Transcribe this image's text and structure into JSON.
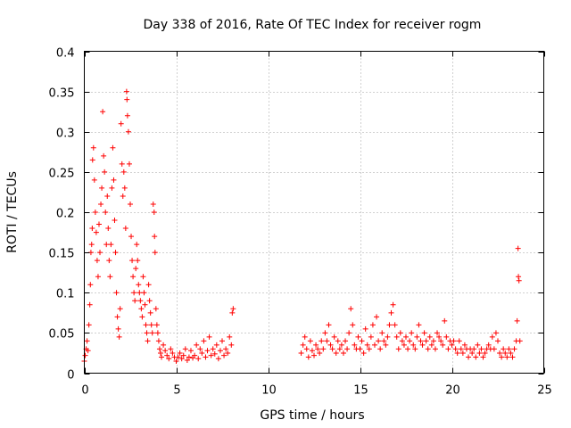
{
  "chart_data": {
    "type": "scatter",
    "title": "Day 338 of 2016, Rate Of TEC Index for receiver rogm",
    "xlabel": "GPS time / hours",
    "ylabel": "ROTI / TECUs",
    "xlim": [
      0,
      25
    ],
    "ylim": [
      0,
      0.4
    ],
    "x_ticks": [
      0,
      5,
      10,
      15,
      20,
      25
    ],
    "x_tick_labels": [
      "0",
      "5",
      "10",
      "15",
      "20",
      "25"
    ],
    "y_ticks": [
      0,
      0.05,
      0.1,
      0.15,
      0.2,
      0.25,
      0.3,
      0.35,
      0.4
    ],
    "y_tick_labels": [
      "0",
      "0.05",
      "0.1",
      "0.15",
      "0.2",
      "0.25",
      "0.3",
      "0.35",
      "0.4"
    ],
    "grid": true,
    "marker": "+",
    "marker_color": "#ff0000",
    "series": [
      {
        "name": "ROTI",
        "points": [
          [
            0.0,
            0.015
          ],
          [
            0.05,
            0.022
          ],
          [
            0.1,
            0.03
          ],
          [
            0.15,
            0.04
          ],
          [
            0.2,
            0.028
          ],
          [
            0.25,
            0.06
          ],
          [
            0.3,
            0.085
          ],
          [
            0.33,
            0.11
          ],
          [
            0.36,
            0.15
          ],
          [
            0.4,
            0.16
          ],
          [
            0.43,
            0.18
          ],
          [
            0.45,
            0.265
          ],
          [
            0.5,
            0.28
          ],
          [
            0.55,
            0.24
          ],
          [
            0.6,
            0.2
          ],
          [
            0.65,
            0.175
          ],
          [
            0.7,
            0.14
          ],
          [
            0.75,
            0.12
          ],
          [
            0.8,
            0.185
          ],
          [
            0.85,
            0.15
          ],
          [
            0.9,
            0.21
          ],
          [
            0.95,
            0.23
          ],
          [
            1.0,
            0.325
          ],
          [
            1.05,
            0.27
          ],
          [
            1.1,
            0.25
          ],
          [
            1.15,
            0.2
          ],
          [
            1.2,
            0.16
          ],
          [
            1.25,
            0.22
          ],
          [
            1.3,
            0.18
          ],
          [
            1.35,
            0.14
          ],
          [
            1.4,
            0.12
          ],
          [
            1.45,
            0.16
          ],
          [
            1.5,
            0.23
          ],
          [
            1.55,
            0.28
          ],
          [
            1.6,
            0.24
          ],
          [
            1.65,
            0.19
          ],
          [
            1.7,
            0.15
          ],
          [
            1.75,
            0.1
          ],
          [
            1.8,
            0.07
          ],
          [
            1.85,
            0.055
          ],
          [
            1.9,
            0.045
          ],
          [
            1.95,
            0.08
          ],
          [
            2.0,
            0.31
          ],
          [
            2.05,
            0.26
          ],
          [
            2.1,
            0.22
          ],
          [
            2.15,
            0.25
          ],
          [
            2.2,
            0.23
          ],
          [
            2.25,
            0.18
          ],
          [
            2.3,
            0.35
          ],
          [
            2.32,
            0.34
          ],
          [
            2.35,
            0.32
          ],
          [
            2.4,
            0.3
          ],
          [
            2.45,
            0.26
          ],
          [
            2.5,
            0.21
          ],
          [
            2.55,
            0.17
          ],
          [
            2.6,
            0.14
          ],
          [
            2.65,
            0.12
          ],
          [
            2.7,
            0.1
          ],
          [
            2.75,
            0.09
          ],
          [
            2.8,
            0.13
          ],
          [
            2.85,
            0.16
          ],
          [
            2.9,
            0.14
          ],
          [
            2.95,
            0.11
          ],
          [
            3.0,
            0.1
          ],
          [
            3.05,
            0.09
          ],
          [
            3.1,
            0.08
          ],
          [
            3.15,
            0.07
          ],
          [
            3.2,
            0.12
          ],
          [
            3.25,
            0.1
          ],
          [
            3.3,
            0.085
          ],
          [
            3.35,
            0.06
          ],
          [
            3.4,
            0.05
          ],
          [
            3.45,
            0.04
          ],
          [
            3.5,
            0.11
          ],
          [
            3.55,
            0.09
          ],
          [
            3.6,
            0.075
          ],
          [
            3.65,
            0.06
          ],
          [
            3.7,
            0.05
          ],
          [
            3.75,
            0.21
          ],
          [
            3.8,
            0.2
          ],
          [
            3.82,
            0.17
          ],
          [
            3.85,
            0.15
          ],
          [
            3.9,
            0.08
          ],
          [
            3.95,
            0.06
          ],
          [
            4.0,
            0.05
          ],
          [
            4.05,
            0.04
          ],
          [
            4.1,
            0.03
          ],
          [
            4.15,
            0.025
          ],
          [
            4.2,
            0.02
          ],
          [
            4.3,
            0.035
          ],
          [
            4.4,
            0.028
          ],
          [
            4.5,
            0.022
          ],
          [
            4.6,
            0.018
          ],
          [
            4.7,
            0.03
          ],
          [
            4.8,
            0.025
          ],
          [
            4.9,
            0.02
          ],
          [
            5.0,
            0.015
          ],
          [
            5.1,
            0.02
          ],
          [
            5.2,
            0.025
          ],
          [
            5.3,
            0.018
          ],
          [
            5.4,
            0.022
          ],
          [
            5.5,
            0.03
          ],
          [
            5.6,
            0.016
          ],
          [
            5.7,
            0.02
          ],
          [
            5.8,
            0.028
          ],
          [
            5.9,
            0.019
          ],
          [
            6.0,
            0.022
          ],
          [
            6.1,
            0.035
          ],
          [
            6.2,
            0.018
          ],
          [
            6.3,
            0.03
          ],
          [
            6.4,
            0.025
          ],
          [
            6.5,
            0.04
          ],
          [
            6.6,
            0.02
          ],
          [
            6.7,
            0.028
          ],
          [
            6.8,
            0.045
          ],
          [
            6.9,
            0.022
          ],
          [
            7.0,
            0.03
          ],
          [
            7.1,
            0.024
          ],
          [
            7.2,
            0.035
          ],
          [
            7.3,
            0.018
          ],
          [
            7.4,
            0.028
          ],
          [
            7.5,
            0.04
          ],
          [
            7.6,
            0.022
          ],
          [
            7.7,
            0.03
          ],
          [
            7.8,
            0.025
          ],
          [
            7.9,
            0.045
          ],
          [
            8.0,
            0.035
          ],
          [
            8.05,
            0.075
          ],
          [
            8.1,
            0.08
          ],
          [
            11.8,
            0.025
          ],
          [
            11.9,
            0.035
          ],
          [
            12.0,
            0.045
          ],
          [
            12.1,
            0.03
          ],
          [
            12.2,
            0.02
          ],
          [
            12.3,
            0.04
          ],
          [
            12.4,
            0.028
          ],
          [
            12.5,
            0.022
          ],
          [
            12.6,
            0.035
          ],
          [
            12.7,
            0.03
          ],
          [
            12.8,
            0.025
          ],
          [
            12.9,
            0.04
          ],
          [
            13.0,
            0.03
          ],
          [
            13.1,
            0.05
          ],
          [
            13.2,
            0.04
          ],
          [
            13.3,
            0.06
          ],
          [
            13.4,
            0.035
          ],
          [
            13.5,
            0.03
          ],
          [
            13.6,
            0.045
          ],
          [
            13.7,
            0.025
          ],
          [
            13.8,
            0.04
          ],
          [
            13.9,
            0.03
          ],
          [
            14.0,
            0.035
          ],
          [
            14.1,
            0.025
          ],
          [
            14.2,
            0.04
          ],
          [
            14.3,
            0.03
          ],
          [
            14.4,
            0.05
          ],
          [
            14.5,
            0.08
          ],
          [
            14.6,
            0.06
          ],
          [
            14.7,
            0.035
          ],
          [
            14.8,
            0.03
          ],
          [
            14.9,
            0.045
          ],
          [
            15.0,
            0.03
          ],
          [
            15.1,
            0.04
          ],
          [
            15.2,
            0.025
          ],
          [
            15.3,
            0.055
          ],
          [
            15.4,
            0.035
          ],
          [
            15.5,
            0.03
          ],
          [
            15.6,
            0.045
          ],
          [
            15.7,
            0.06
          ],
          [
            15.8,
            0.035
          ],
          [
            15.9,
            0.07
          ],
          [
            16.0,
            0.04
          ],
          [
            16.1,
            0.03
          ],
          [
            16.2,
            0.05
          ],
          [
            16.3,
            0.04
          ],
          [
            16.4,
            0.035
          ],
          [
            16.5,
            0.045
          ],
          [
            16.6,
            0.06
          ],
          [
            16.7,
            0.075
          ],
          [
            16.8,
            0.085
          ],
          [
            16.9,
            0.06
          ],
          [
            17.0,
            0.045
          ],
          [
            17.1,
            0.03
          ],
          [
            17.2,
            0.05
          ],
          [
            17.3,
            0.04
          ],
          [
            17.4,
            0.035
          ],
          [
            17.5,
            0.045
          ],
          [
            17.6,
            0.03
          ],
          [
            17.7,
            0.04
          ],
          [
            17.8,
            0.05
          ],
          [
            17.9,
            0.035
          ],
          [
            18.0,
            0.03
          ],
          [
            18.1,
            0.045
          ],
          [
            18.2,
            0.06
          ],
          [
            18.3,
            0.04
          ],
          [
            18.4,
            0.035
          ],
          [
            18.5,
            0.05
          ],
          [
            18.6,
            0.04
          ],
          [
            18.7,
            0.03
          ],
          [
            18.8,
            0.045
          ],
          [
            18.9,
            0.035
          ],
          [
            19.0,
            0.04
          ],
          [
            19.1,
            0.03
          ],
          [
            19.2,
            0.05
          ],
          [
            19.3,
            0.045
          ],
          [
            19.4,
            0.04
          ],
          [
            19.5,
            0.035
          ],
          [
            19.6,
            0.065
          ],
          [
            19.7,
            0.045
          ],
          [
            19.8,
            0.03
          ],
          [
            19.9,
            0.04
          ],
          [
            20.0,
            0.035
          ],
          [
            20.1,
            0.04
          ],
          [
            20.2,
            0.03
          ],
          [
            20.3,
            0.025
          ],
          [
            20.4,
            0.04
          ],
          [
            20.5,
            0.03
          ],
          [
            20.6,
            0.025
          ],
          [
            20.7,
            0.035
          ],
          [
            20.8,
            0.03
          ],
          [
            20.9,
            0.02
          ],
          [
            21.0,
            0.03
          ],
          [
            21.1,
            0.025
          ],
          [
            21.2,
            0.03
          ],
          [
            21.3,
            0.02
          ],
          [
            21.4,
            0.035
          ],
          [
            21.5,
            0.025
          ],
          [
            21.6,
            0.03
          ],
          [
            21.7,
            0.02
          ],
          [
            21.8,
            0.025
          ],
          [
            21.9,
            0.03
          ],
          [
            22.0,
            0.035
          ],
          [
            22.1,
            0.03
          ],
          [
            22.2,
            0.045
          ],
          [
            22.3,
            0.03
          ],
          [
            22.4,
            0.05
          ],
          [
            22.5,
            0.04
          ],
          [
            22.6,
            0.025
          ],
          [
            22.7,
            0.02
          ],
          [
            22.8,
            0.03
          ],
          [
            22.9,
            0.025
          ],
          [
            23.0,
            0.02
          ],
          [
            23.1,
            0.03
          ],
          [
            23.2,
            0.025
          ],
          [
            23.3,
            0.02
          ],
          [
            23.4,
            0.03
          ],
          [
            23.5,
            0.04
          ],
          [
            23.55,
            0.065
          ],
          [
            23.6,
            0.155
          ],
          [
            23.62,
            0.12
          ],
          [
            23.65,
            0.115
          ],
          [
            23.7,
            0.04
          ]
        ]
      }
    ]
  }
}
